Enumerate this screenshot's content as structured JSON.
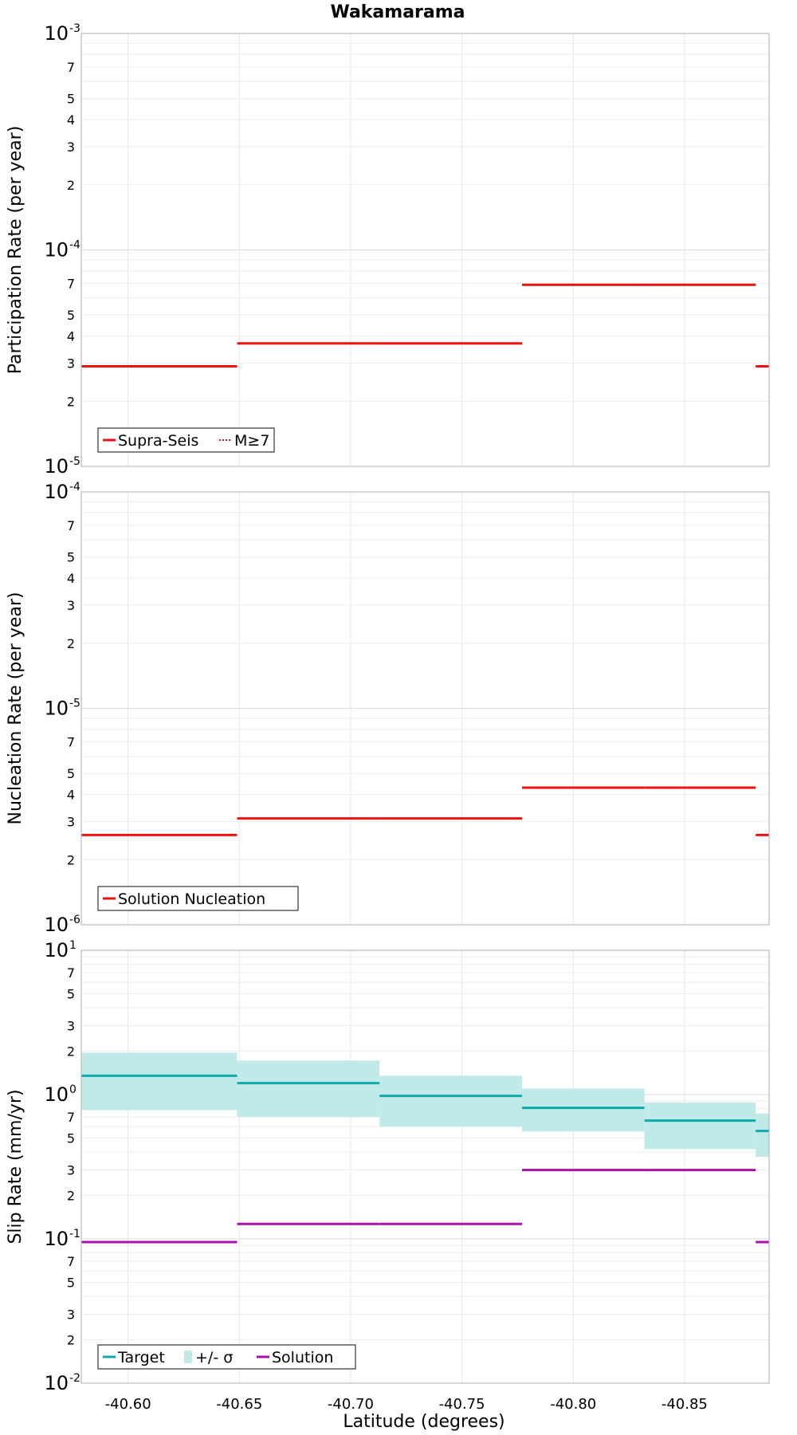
{
  "title": "Wakamarama",
  "xlabel": "Latitude (degrees)",
  "chart_data": [
    {
      "type": "line",
      "ylabel": "Participation Rate (per year)",
      "yscale": "log",
      "ylim": [
        1e-05,
        0.001
      ],
      "xlim": [
        -40.579,
        -40.888
      ],
      "x_ticks": [
        "-40.60",
        "-40.65",
        "-40.70",
        "-40.75",
        "-40.80",
        "-40.85"
      ],
      "legend": {
        "placement": "bottom-left",
        "entries": [
          "Supra-Seis",
          "M≥7"
        ]
      },
      "grid": true,
      "series": [
        {
          "name": "Supra-Seis",
          "color": "#ee1111",
          "style": "solid",
          "segments": [
            {
              "x": [
                -40.579,
                -40.649
              ],
              "y": 2.9e-05
            },
            {
              "x": [
                -40.649,
                -40.713
              ],
              "y": 3.7e-05
            },
            {
              "x": [
                -40.713,
                -40.777
              ],
              "y": 3.7e-05
            },
            {
              "x": [
                -40.777,
                -40.832
              ],
              "y": 6.9e-05
            },
            {
              "x": [
                -40.832,
                -40.882
              ],
              "y": 6.9e-05
            },
            {
              "x": [
                -40.882,
                -40.888
              ],
              "y": 2.9e-05
            }
          ]
        },
        {
          "name": "M≥7",
          "color": "#ee1111",
          "style": "dotted",
          "segments": [
            {
              "x": [
                -40.579,
                -40.649
              ],
              "y": 2.9e-05
            },
            {
              "x": [
                -40.649,
                -40.713
              ],
              "y": 3.7e-05
            },
            {
              "x": [
                -40.713,
                -40.777
              ],
              "y": 3.7e-05
            },
            {
              "x": [
                -40.777,
                -40.832
              ],
              "y": 6.9e-05
            },
            {
              "x": [
                -40.832,
                -40.882
              ],
              "y": 6.9e-05
            },
            {
              "x": [
                -40.882,
                -40.888
              ],
              "y": 2.9e-05
            }
          ]
        }
      ]
    },
    {
      "type": "line",
      "ylabel": "Nucleation Rate (per year)",
      "yscale": "log",
      "ylim": [
        1e-06,
        0.0001
      ],
      "xlim": [
        -40.579,
        -40.888
      ],
      "x_ticks": [
        "-40.60",
        "-40.65",
        "-40.70",
        "-40.75",
        "-40.80",
        "-40.85"
      ],
      "legend": {
        "placement": "bottom-left",
        "entries": [
          "Solution Nucleation"
        ]
      },
      "grid": true,
      "series": [
        {
          "name": "Solution Nucleation",
          "color": "#ee1111",
          "style": "solid",
          "segments": [
            {
              "x": [
                -40.579,
                -40.649
              ],
              "y": 2.6e-06
            },
            {
              "x": [
                -40.649,
                -40.713
              ],
              "y": 3.1e-06
            },
            {
              "x": [
                -40.713,
                -40.777
              ],
              "y": 3.1e-06
            },
            {
              "x": [
                -40.777,
                -40.832
              ],
              "y": 4.3e-06
            },
            {
              "x": [
                -40.832,
                -40.882
              ],
              "y": 4.3e-06
            },
            {
              "x": [
                -40.882,
                -40.888
              ],
              "y": 2.6e-06
            }
          ]
        }
      ]
    },
    {
      "type": "line",
      "ylabel": "Slip Rate (mm/yr)",
      "yscale": "log",
      "ylim": [
        0.01,
        10
      ],
      "xlim": [
        -40.579,
        -40.888
      ],
      "x_ticks": [
        "-40.60",
        "-40.65",
        "-40.70",
        "-40.75",
        "-40.80",
        "-40.85"
      ],
      "legend": {
        "placement": "bottom-left",
        "entries": [
          "Target",
          "+/- σ",
          "Solution"
        ]
      },
      "grid": true,
      "series": [
        {
          "name": "+/- σ",
          "color": "#bfeae8",
          "style": "band",
          "segments": [
            {
              "x": [
                -40.579,
                -40.649
              ],
              "low": 0.78,
              "high": 1.95
            },
            {
              "x": [
                -40.649,
                -40.713
              ],
              "low": 0.7,
              "high": 1.72
            },
            {
              "x": [
                -40.713,
                -40.777
              ],
              "low": 0.6,
              "high": 1.35
            },
            {
              "x": [
                -40.777,
                -40.832
              ],
              "low": 0.555,
              "high": 1.1
            },
            {
              "x": [
                -40.832,
                -40.882
              ],
              "low": 0.42,
              "high": 0.88
            },
            {
              "x": [
                -40.882,
                -40.888
              ],
              "low": 0.37,
              "high": 0.74
            }
          ]
        },
        {
          "name": "Target",
          "color": "#11aaaa",
          "style": "solid",
          "segments": [
            {
              "x": [
                -40.579,
                -40.649
              ],
              "y": 1.35
            },
            {
              "x": [
                -40.649,
                -40.713
              ],
              "y": 1.2
            },
            {
              "x": [
                -40.713,
                -40.777
              ],
              "y": 0.98
            },
            {
              "x": [
                -40.777,
                -40.832
              ],
              "y": 0.81
            },
            {
              "x": [
                -40.832,
                -40.882
              ],
              "y": 0.66
            },
            {
              "x": [
                -40.882,
                -40.888
              ],
              "y": 0.56
            }
          ]
        },
        {
          "name": "Solution",
          "color": "#aa11aa",
          "style": "solid",
          "segments": [
            {
              "x": [
                -40.579,
                -40.649
              ],
              "y": 0.095
            },
            {
              "x": [
                -40.649,
                -40.713
              ],
              "y": 0.127
            },
            {
              "x": [
                -40.713,
                -40.777
              ],
              "y": 0.127
            },
            {
              "x": [
                -40.777,
                -40.832
              ],
              "y": 0.3
            },
            {
              "x": [
                -40.832,
                -40.882
              ],
              "y": 0.3
            },
            {
              "x": [
                -40.882,
                -40.888
              ],
              "y": 0.095
            }
          ]
        }
      ]
    }
  ]
}
